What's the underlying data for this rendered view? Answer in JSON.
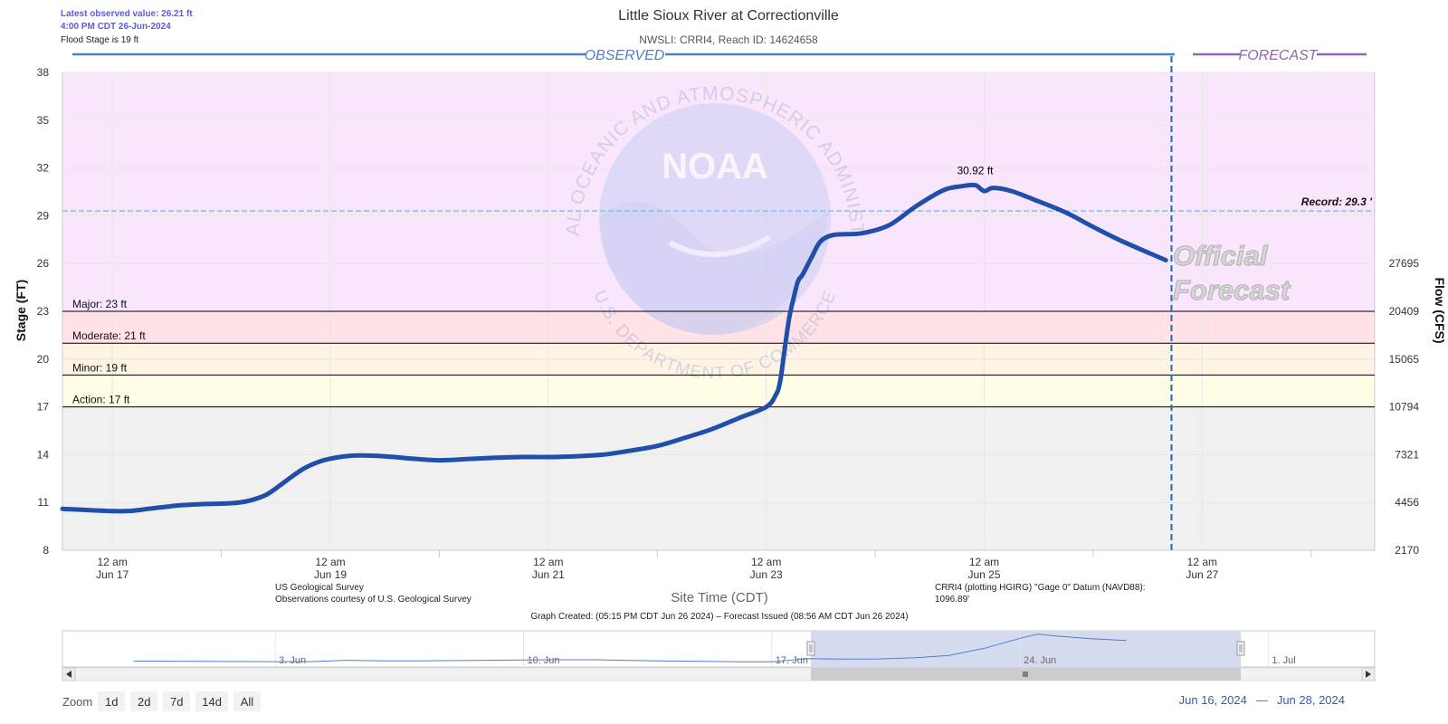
{
  "header": {
    "latest_value": "Latest observed value: 26.21 ft",
    "latest_time": "4:00 PM CDT 26-Jun-2024",
    "flood_stage": "Flood Stage is 19 ft"
  },
  "watermark": {
    "logo_text": "NOAA",
    "ring_top": "NATIONAL OCEANIC AND ATMOSPHERIC ADMINISTRATION",
    "ring_bottom": "U.S. DEPARTMENT OF COMMERCE"
  },
  "footer": {
    "source_line1": "US Geological Survey",
    "source_line2": "Observations courtesy of U.S. Geological Survey",
    "datum_line1": "CRRI4 (plotting HGIRG) \"Gage 0\" Datum (NAVD88):",
    "datum_line2": "1096.89'",
    "graph_created": "Graph Created: (05:15 PM CDT Jun 26 2024) – Forecast Issued (08:56 AM CDT Jun 26 2024)"
  },
  "navigator": {
    "labels": [
      "3. Jun",
      "10. Jun",
      "17. Jun",
      "24. Jun",
      "1. Jul"
    ],
    "series_days": [
      0,
      1,
      2,
      3,
      4,
      5,
      6,
      7,
      8,
      9,
      10,
      11,
      12,
      13,
      14,
      15,
      16,
      17,
      18,
      19,
      20,
      21,
      22,
      23,
      24,
      25,
      25.5,
      26,
      27,
      28
    ],
    "series_stage": [
      10.9,
      10.9,
      10.8,
      10.7,
      10.6,
      10.6,
      11.6,
      11.2,
      11.2,
      11.4,
      11.6,
      11.8,
      12.0,
      12.0,
      11.5,
      11.1,
      10.8,
      10.5,
      10.5,
      12.8,
      12.5,
      12.6,
      13.4,
      15.2,
      20.5,
      27.8,
      30.9,
      29.5,
      27.5,
      26.2
    ],
    "series_start": "May 30, 2024"
  },
  "zoom": {
    "label": "Zoom",
    "buttons": [
      "1d",
      "2d",
      "7d",
      "14d",
      "All"
    ]
  },
  "range": {
    "from": "Jun 16, 2024",
    "dash": "—",
    "to": "Jun 28, 2024"
  },
  "chart_data": {
    "type": "line",
    "title": "Little Sioux River at Correctionville",
    "subtitle": "NWSLI: CRRI4, Reach ID: 14624658",
    "xlabel": "Site Time (CDT)",
    "ylabel": "Stage (FT)",
    "ylabel_right": "Flow (CFS)",
    "ylim": [
      8,
      38
    ],
    "yticks": [
      8,
      11,
      14,
      17,
      20,
      23,
      26,
      29,
      32,
      35,
      38
    ],
    "flow_ticks": [
      {
        "stage": 8,
        "label": "2170"
      },
      {
        "stage": 11,
        "label": "4456"
      },
      {
        "stage": 14,
        "label": "7321"
      },
      {
        "stage": 17,
        "label": "10794"
      },
      {
        "stage": 20,
        "label": "15065"
      },
      {
        "stage": 23,
        "label": "20409"
      },
      {
        "stage": 26,
        "label": "27695"
      }
    ],
    "xlim": [
      "2024-06-16T13:00",
      "2024-06-28T14:00"
    ],
    "xticks": [
      {
        "x": "2024-06-17T00:00",
        "label1": "12 am",
        "label2": "Jun 17"
      },
      {
        "x": "2024-06-19T00:00",
        "label1": "12 am",
        "label2": "Jun 19"
      },
      {
        "x": "2024-06-21T00:00",
        "label1": "12 am",
        "label2": "Jun 21"
      },
      {
        "x": "2024-06-23T00:00",
        "label1": "12 am",
        "label2": "Jun 23"
      },
      {
        "x": "2024-06-25T00:00",
        "label1": "12 am",
        "label2": "Jun 25"
      },
      {
        "x": "2024-06-27T00:00",
        "label1": "12 am",
        "label2": "Jun 27"
      }
    ],
    "minor_ticks": [
      "2024-06-18T00:00",
      "2024-06-20T00:00",
      "2024-06-22T00:00",
      "2024-06-24T00:00",
      "2024-06-26T00:00",
      "2024-06-28T00:00"
    ],
    "bands": [
      {
        "from": 8,
        "to": 17,
        "color": "#f0f0f0"
      },
      {
        "from": 17,
        "to": 19,
        "color": "#fffde3"
      },
      {
        "from": 19,
        "to": 21,
        "color": "#fff4e3"
      },
      {
        "from": 21,
        "to": 23,
        "color": "#ffe1e6"
      },
      {
        "from": 23,
        "to": 38,
        "color": "#fae6fc"
      }
    ],
    "thresholds": [
      {
        "label": "Action: 17 ft",
        "value": 17
      },
      {
        "label": "Minor: 19 ft",
        "value": 19
      },
      {
        "label": "Moderate: 21 ft",
        "value": 21
      },
      {
        "label": "Major: 23 ft",
        "value": 23
      }
    ],
    "record": {
      "label": "Record: 29.3 '",
      "value": 29.3,
      "color": "#6ec9ec"
    },
    "observed_label": "OBSERVED",
    "forecast_label": "FORECAST",
    "official_forecast": [
      "Official",
      "Forecast"
    ],
    "forecast_start": "2024-06-26T17:15",
    "peak": {
      "x": "2024-06-24T22:00",
      "y": 30.92,
      "label": "30.92 ft"
    },
    "series": [
      {
        "color": "#1f4fa8",
        "points": [
          [
            "2024-06-16T13:00",
            10.6
          ],
          [
            "2024-06-17T02:00",
            10.45
          ],
          [
            "2024-06-17T08:00",
            10.6
          ],
          [
            "2024-06-17T14:00",
            10.8
          ],
          [
            "2024-06-17T20:00",
            10.9
          ],
          [
            "2024-06-18T02:00",
            10.95
          ],
          [
            "2024-06-18T06:00",
            11.1
          ],
          [
            "2024-06-18T10:00",
            11.5
          ],
          [
            "2024-06-18T14:00",
            12.3
          ],
          [
            "2024-06-18T18:00",
            13.1
          ],
          [
            "2024-06-18T22:00",
            13.6
          ],
          [
            "2024-06-19T02:00",
            13.85
          ],
          [
            "2024-06-19T06:00",
            13.95
          ],
          [
            "2024-06-19T12:00",
            13.9
          ],
          [
            "2024-06-19T18:00",
            13.75
          ],
          [
            "2024-06-20T00:00",
            13.65
          ],
          [
            "2024-06-20T06:00",
            13.72
          ],
          [
            "2024-06-20T12:00",
            13.8
          ],
          [
            "2024-06-20T18:00",
            13.85
          ],
          [
            "2024-06-21T00:00",
            13.85
          ],
          [
            "2024-06-21T06:00",
            13.9
          ],
          [
            "2024-06-21T12:00",
            14.0
          ],
          [
            "2024-06-21T18:00",
            14.25
          ],
          [
            "2024-06-22T00:00",
            14.55
          ],
          [
            "2024-06-22T06:00",
            15.05
          ],
          [
            "2024-06-22T12:00",
            15.6
          ],
          [
            "2024-06-22T18:00",
            16.3
          ],
          [
            "2024-06-23T00:00",
            17.0
          ],
          [
            "2024-06-23T02:00",
            17.7
          ],
          [
            "2024-06-23T03:00",
            18.5
          ],
          [
            "2024-06-23T04:00",
            20.5
          ],
          [
            "2024-06-23T05:00",
            22.5
          ],
          [
            "2024-06-23T06:00",
            23.8
          ],
          [
            "2024-06-23T07:00",
            24.9
          ],
          [
            "2024-06-23T08:00",
            25.3
          ],
          [
            "2024-06-23T10:00",
            26.4
          ],
          [
            "2024-06-23T12:00",
            27.4
          ],
          [
            "2024-06-23T15:00",
            27.8
          ],
          [
            "2024-06-23T21:00",
            27.9
          ],
          [
            "2024-06-24T03:00",
            28.4
          ],
          [
            "2024-06-24T09:00",
            29.6
          ],
          [
            "2024-06-24T15:00",
            30.6
          ],
          [
            "2024-06-24T19:00",
            30.85
          ],
          [
            "2024-06-24T22:00",
            30.92
          ],
          [
            "2024-06-25T00:00",
            30.55
          ],
          [
            "2024-06-25T02:00",
            30.75
          ],
          [
            "2024-06-25T06:00",
            30.55
          ],
          [
            "2024-06-25T12:00",
            29.9
          ],
          [
            "2024-06-25T18:00",
            29.2
          ],
          [
            "2024-06-26T00:00",
            28.3
          ],
          [
            "2024-06-26T06:00",
            27.45
          ],
          [
            "2024-06-26T12:00",
            26.7
          ],
          [
            "2024-06-26T16:00",
            26.21
          ]
        ]
      }
    ]
  }
}
